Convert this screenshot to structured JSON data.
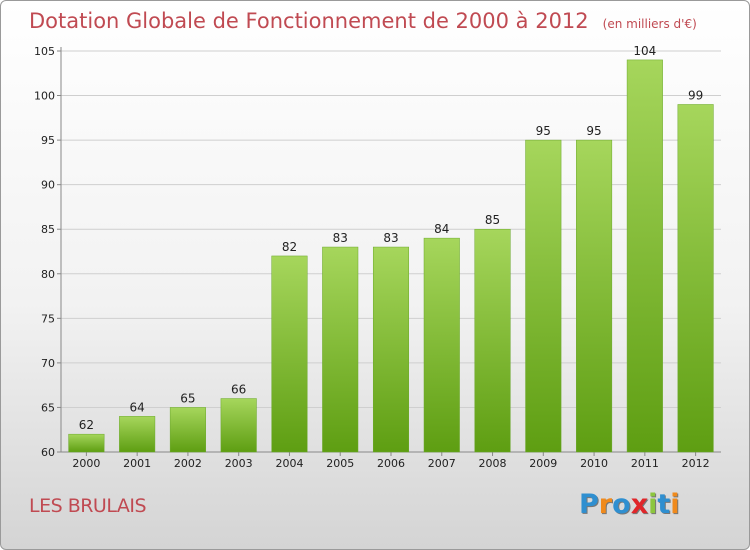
{
  "title": "Dotation Globale de Fonctionnement de 2000 à 2012",
  "unit": "(en milliers d'€)",
  "location": "LES BRULAIS",
  "brand": {
    "letters": [
      "P",
      "r",
      "o",
      "x",
      "i",
      "t",
      "i"
    ],
    "colors": [
      "#2f8fd0",
      "#f08a1c",
      "#2f8fd0",
      "#e0262a",
      "#8cc63e",
      "#2f8fd0",
      "#f08a1c"
    ]
  },
  "colors": {
    "bar_top": "#a6d65c",
    "bar_bottom": "#5e9e12",
    "title": "#c04a52"
  },
  "chart_data": {
    "type": "bar",
    "title": "Dotation Globale de Fonctionnement de 2000 à 2012",
    "unit": "(en milliers d'€)",
    "categories": [
      "2000",
      "2001",
      "2002",
      "2003",
      "2004",
      "2005",
      "2006",
      "2007",
      "2008",
      "2009",
      "2010",
      "2011",
      "2012"
    ],
    "values": [
      62,
      64,
      65,
      66,
      82,
      83,
      83,
      84,
      85,
      95,
      95,
      104,
      99
    ],
    "ylim": [
      60,
      105
    ],
    "yticks": [
      60,
      65,
      70,
      75,
      80,
      85,
      90,
      95,
      100,
      105
    ],
    "grid": true,
    "legend": "none"
  }
}
